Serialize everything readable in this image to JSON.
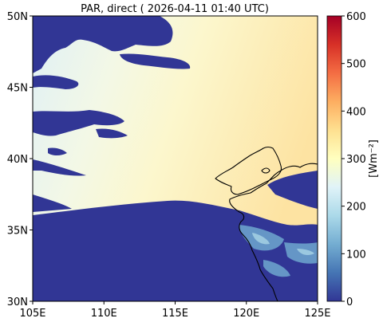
{
  "title": "PAR, direct ( 2026-04-11 01:40 UTC)",
  "map": {
    "lon_range": [
      105,
      125
    ],
    "lat_range": [
      30,
      50
    ],
    "x_ticks": [
      {
        "value": 105,
        "label": "105E"
      },
      {
        "value": 110,
        "label": "110E"
      },
      {
        "value": 115,
        "label": "115E"
      },
      {
        "value": 120,
        "label": "120E"
      },
      {
        "value": 125,
        "label": "125E"
      }
    ],
    "y_ticks": [
      {
        "value": 30,
        "label": "30N"
      },
      {
        "value": 35,
        "label": "35N"
      },
      {
        "value": 40,
        "label": "40N"
      },
      {
        "value": 45,
        "label": "45N"
      },
      {
        "value": 50,
        "label": "50N"
      }
    ]
  },
  "colorbar": {
    "label": "[Wm⁻²]",
    "range": [
      0,
      600
    ],
    "colormap": "RdYlBu_r",
    "ticks": [
      {
        "value": 0,
        "label": "0"
      },
      {
        "value": 100,
        "label": "100"
      },
      {
        "value": 200,
        "label": "200"
      },
      {
        "value": 300,
        "label": "300"
      },
      {
        "value": 400,
        "label": "400"
      },
      {
        "value": 500,
        "label": "500"
      },
      {
        "value": 600,
        "label": "600"
      }
    ],
    "colors": [
      "#313695",
      "#4575b4",
      "#74add1",
      "#abd9e9",
      "#e0f3f8",
      "#ffffbf",
      "#fee090",
      "#fdae61",
      "#f46d43",
      "#d73027",
      "#a50026"
    ]
  },
  "colors": {
    "cloud_mask": "#313695",
    "field_west": "#e2f2f4",
    "field_center": "#fbf8d0",
    "field_east": "#fde6a8",
    "coastline": "#000000"
  }
}
